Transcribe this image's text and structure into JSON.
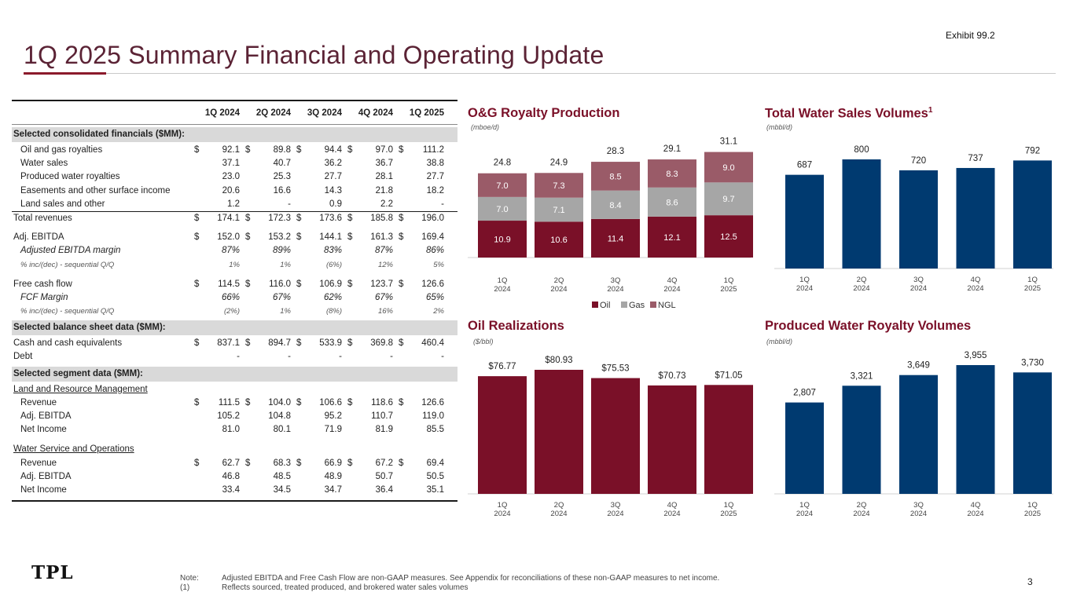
{
  "header": {
    "exhibit": "Exhibit 99.2",
    "title": "1Q 2025 Summary Financial and Operating Update",
    "accent_color": "#8b1a2b"
  },
  "table": {
    "columns": [
      "1Q 2024",
      "2Q 2024",
      "3Q 2024",
      "4Q 2024",
      "1Q 2025"
    ],
    "rows": [
      {
        "type": "section",
        "label": "Selected consolidated financials ($MM):"
      },
      {
        "type": "data",
        "indent": true,
        "label": "Oil and gas royalties",
        "dollar": true,
        "values": [
          "92.1",
          "89.8",
          "94.4",
          "97.0",
          "111.2"
        ]
      },
      {
        "type": "data",
        "indent": true,
        "label": "Water sales",
        "values": [
          "37.1",
          "40.7",
          "36.2",
          "36.7",
          "38.8"
        ]
      },
      {
        "type": "data",
        "indent": true,
        "label": "Produced water royalties",
        "values": [
          "23.0",
          "25.3",
          "27.7",
          "28.1",
          "27.7"
        ]
      },
      {
        "type": "data",
        "indent": true,
        "label": "Easements and other surface income",
        "values": [
          "20.6",
          "16.6",
          "14.3",
          "21.8",
          "18.2"
        ]
      },
      {
        "type": "data",
        "indent": true,
        "label": "Land sales and other",
        "values": [
          "1.2",
          "-",
          "0.9",
          "2.2",
          "-"
        ]
      },
      {
        "type": "total",
        "label": "Total revenues",
        "dollar": true,
        "values": [
          "174.1",
          "172.3",
          "173.6",
          "185.8",
          "196.0"
        ]
      },
      {
        "type": "gap"
      },
      {
        "type": "data",
        "label": "Adj. EBITDA",
        "dollar": true,
        "values": [
          "152.0",
          "153.2",
          "144.1",
          "161.3",
          "169.4"
        ]
      },
      {
        "type": "italic",
        "indent": true,
        "label": "Adjusted EBITDA margin",
        "values": [
          "87%",
          "89%",
          "83%",
          "87%",
          "86%"
        ]
      },
      {
        "type": "sub",
        "indent": true,
        "label": "% inc/(dec) - sequential Q/Q",
        "values": [
          "1%",
          "1%",
          "(6%)",
          "12%",
          "5%"
        ]
      },
      {
        "type": "gap"
      },
      {
        "type": "data",
        "label": "Free cash flow",
        "dollar": true,
        "values": [
          "114.5",
          "116.0",
          "106.9",
          "123.7",
          "126.6"
        ]
      },
      {
        "type": "italic",
        "indent": true,
        "label": "FCF Margin",
        "values": [
          "66%",
          "67%",
          "62%",
          "67%",
          "65%"
        ]
      },
      {
        "type": "sub",
        "indent": true,
        "label": "% inc/(dec) - sequential Q/Q",
        "values": [
          "(2%)",
          "1%",
          "(8%)",
          "16%",
          "2%"
        ]
      },
      {
        "type": "section",
        "label": "Selected balance sheet data ($MM):"
      },
      {
        "type": "data",
        "label": "Cash and cash equivalents",
        "dollar": true,
        "values": [
          "837.1",
          "894.7",
          "533.9",
          "369.8",
          "460.4"
        ]
      },
      {
        "type": "data",
        "label": "Debt",
        "values": [
          "-",
          "-",
          "-",
          "-",
          "-"
        ]
      },
      {
        "type": "section",
        "label": "Selected segment data ($MM):"
      },
      {
        "type": "under",
        "label": "Land and Resource Management"
      },
      {
        "type": "data",
        "indent": true,
        "label": "Revenue",
        "dollar": true,
        "values": [
          "111.5",
          "104.0",
          "106.6",
          "118.6",
          "126.6"
        ]
      },
      {
        "type": "data",
        "indent": true,
        "label": "Adj. EBITDA",
        "values": [
          "105.2",
          "104.8",
          "95.2",
          "110.7",
          "119.0"
        ]
      },
      {
        "type": "data",
        "indent": true,
        "label": "Net Income",
        "values": [
          "81.0",
          "80.1",
          "71.9",
          "81.9",
          "85.5"
        ]
      },
      {
        "type": "gap"
      },
      {
        "type": "under",
        "label": "Water Service and Operations"
      },
      {
        "type": "data",
        "indent": true,
        "label": "Revenue",
        "dollar": true,
        "values": [
          "62.7",
          "68.3",
          "66.9",
          "67.2",
          "69.4"
        ]
      },
      {
        "type": "data",
        "indent": true,
        "label": "Adj. EBITDA",
        "values": [
          "46.8",
          "48.5",
          "48.9",
          "50.7",
          "50.5"
        ]
      },
      {
        "type": "data",
        "indent": true,
        "label": "Net Income",
        "values": [
          "33.4",
          "34.5",
          "34.7",
          "36.4",
          "35.1"
        ]
      }
    ]
  },
  "chart_data": [
    {
      "id": "og",
      "type": "bar",
      "stacked": true,
      "title": "O&G Royalty Production",
      "unit": "(mboe/d)",
      "categories": [
        [
          "1Q",
          "2024"
        ],
        [
          "2Q",
          "2024"
        ],
        [
          "3Q",
          "2024"
        ],
        [
          "4Q",
          "2024"
        ],
        [
          "1Q",
          "2025"
        ]
      ],
      "series": [
        {
          "name": "Oil",
          "color": "#7a1028",
          "values": [
            10.9,
            10.6,
            11.4,
            12.1,
            12.5
          ],
          "labels": [
            "10.9",
            "10.6",
            "11.4",
            "12.1",
            "12.5"
          ]
        },
        {
          "name": "Gas",
          "color": "#a6a6a6",
          "values": [
            7.0,
            7.1,
            8.4,
            8.6,
            9.7
          ],
          "labels": [
            "7.0",
            "7.1",
            "8.4",
            "8.6",
            "9.7"
          ]
        },
        {
          "name": "NGL",
          "color": "#9a5b68",
          "values": [
            7.0,
            7.3,
            8.5,
            8.3,
            9.0
          ],
          "labels": [
            "7.0",
            "7.3",
            "8.5",
            "8.3",
            "9.0"
          ]
        }
      ],
      "totals": [
        "24.8",
        "24.9",
        "28.3",
        "29.1",
        "31.1"
      ],
      "ylim": [
        0,
        31.1
      ],
      "legend": "bottom"
    },
    {
      "id": "water",
      "type": "bar",
      "title": "Total Water Sales Volumes",
      "title_sup": "1",
      "unit": "(mbbl/d)",
      "color": "#003a70",
      "categories": [
        [
          "1Q",
          "2024"
        ],
        [
          "2Q",
          "2024"
        ],
        [
          "3Q",
          "2024"
        ],
        [
          "4Q",
          "2024"
        ],
        [
          "1Q",
          "2025"
        ]
      ],
      "values": [
        687,
        800,
        720,
        737,
        792
      ],
      "labels": [
        "687",
        "800",
        "720",
        "737",
        "792"
      ],
      "ylim": [
        0,
        800
      ]
    },
    {
      "id": "oil",
      "type": "bar",
      "title": "Oil Realizations",
      "unit": "($/bbl)",
      "color": "#7a1028",
      "categories": [
        [
          "1Q",
          "2024"
        ],
        [
          "2Q",
          "2024"
        ],
        [
          "3Q",
          "2024"
        ],
        [
          "4Q",
          "2024"
        ],
        [
          "1Q",
          "2025"
        ]
      ],
      "values": [
        76.77,
        80.93,
        75.53,
        70.73,
        71.05
      ],
      "labels": [
        "$76.77",
        "$80.93",
        "$75.53",
        "$70.73",
        "$71.05"
      ],
      "ylim": [
        0,
        80.93
      ]
    },
    {
      "id": "pw",
      "type": "bar",
      "title": "Produced Water Royalty Volumes",
      "unit": "(mbbl/d)",
      "color": "#003a70",
      "categories": [
        [
          "1Q",
          "2024"
        ],
        [
          "2Q",
          "2024"
        ],
        [
          "3Q",
          "2024"
        ],
        [
          "4Q",
          "2024"
        ],
        [
          "1Q",
          "2025"
        ]
      ],
      "values": [
        2807,
        3321,
        3649,
        3955,
        3730
      ],
      "labels": [
        "2,807",
        "3,321",
        "3,649",
        "3,955",
        "3,730"
      ],
      "ylim": [
        0,
        3955
      ]
    }
  ],
  "footnotes": [
    {
      "tag": "Note:",
      "text": "Adjusted EBITDA and Free Cash Flow are non-GAAP measures.  See Appendix for reconciliations of these non-GAAP measures to net income."
    },
    {
      "tag": "(1)",
      "text": "Reflects sourced, treated produced, and brokered water sales volumes"
    }
  ],
  "page_number": "3",
  "logo_text": "TPL"
}
